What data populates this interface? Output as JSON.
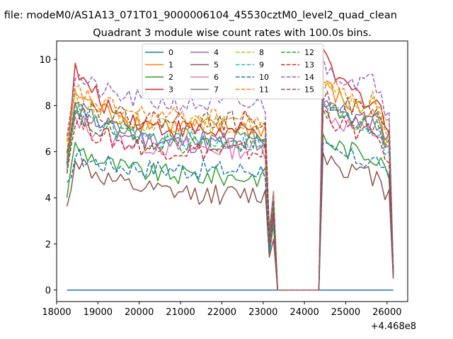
{
  "figure": {
    "suptitle": "n file: modeM0/AS1A13_071T01_9000006104_45530cztM0_level2_quad_clean"
  },
  "chart_data": {
    "type": "line",
    "title": "Quadrant 3 module wise count rates with 100.0s bins.",
    "xlabel": "",
    "ylabel": "",
    "x_offset_label": "+4.468e8",
    "xlim": [
      18000,
      26500
    ],
    "ylim": [
      -0.5,
      10.8
    ],
    "xticks": [
      18000,
      19000,
      20000,
      21000,
      22000,
      23000,
      24000,
      25000,
      26000
    ],
    "yticks": [
      0,
      2,
      4,
      6,
      8,
      10
    ],
    "grid": false,
    "legend_placement": "upper center",
    "legend_columns": 4,
    "series": [
      {
        "name": "0",
        "color": "#1f77b4",
        "dash": "solid",
        "level": 0.0,
        "peak": 0.0,
        "after_level": 0.0
      },
      {
        "name": "1",
        "color": "#ff7f0e",
        "dash": "solid",
        "level": 7.0,
        "peak": 8.6,
        "after_level": 7.3
      },
      {
        "name": "2",
        "color": "#2ca02c",
        "dash": "solid",
        "level": 4.9,
        "peak": 6.3,
        "after_level": 5.7
      },
      {
        "name": "3",
        "color": "#d62728",
        "dash": "solid",
        "level": 6.8,
        "peak": 9.6,
        "after_level": 7.8
      },
      {
        "name": "4",
        "color": "#9467bd",
        "dash": "solid",
        "level": 6.3,
        "peak": 8.0,
        "after_level": 7.0
      },
      {
        "name": "5",
        "color": "#8c564b",
        "dash": "solid",
        "level": 4.1,
        "peak": 5.7,
        "after_level": 4.7
      },
      {
        "name": "6",
        "color": "#e377c2",
        "dash": "solid",
        "level": 6.1,
        "peak": 7.5,
        "after_level": 6.6
      },
      {
        "name": "7",
        "color": "#7f7f7f",
        "dash": "solid",
        "level": 6.5,
        "peak": 8.0,
        "after_level": 7.1
      },
      {
        "name": "8",
        "color": "#bcbd22",
        "dash": "dashed",
        "level": 7.1,
        "peak": 8.4,
        "after_level": 7.7
      },
      {
        "name": "9",
        "color": "#17becf",
        "dash": "dashed",
        "level": 6.4,
        "peak": 7.8,
        "after_level": 6.8
      },
      {
        "name": "10",
        "color": "#1f77b4",
        "dash": "dashed",
        "level": 5.2,
        "peak": 5.8,
        "after_level": 5.5
      },
      {
        "name": "11",
        "color": "#ff7f0e",
        "dash": "dashed",
        "level": 7.4,
        "peak": 8.7,
        "after_level": 8.0
      },
      {
        "name": "12",
        "color": "#2ca02c",
        "dash": "dashed",
        "level": 6.3,
        "peak": 7.6,
        "after_level": 6.9
      },
      {
        "name": "13",
        "color": "#d62728",
        "dash": "dashed",
        "level": 6.0,
        "peak": 7.4,
        "after_level": 6.5
      },
      {
        "name": "14",
        "color": "#9467bd",
        "dash": "dashed",
        "level": 8.0,
        "peak": 9.3,
        "after_level": 8.8
      },
      {
        "name": "15",
        "color": "#8c564b",
        "dash": "dashed",
        "level": 7.3,
        "peak": 8.1,
        "after_level": 7.6
      }
    ],
    "time_profile": {
      "start": 18250,
      "bin": 100,
      "rise_until": 18450,
      "gap_start": 23100,
      "gap_dip": 23150,
      "gap_spike": 23250,
      "gap_zero_from": 23350,
      "gap_zero_to": 24350,
      "resume": 24450,
      "end": 26150,
      "end_value_fraction": 0.12
    }
  }
}
